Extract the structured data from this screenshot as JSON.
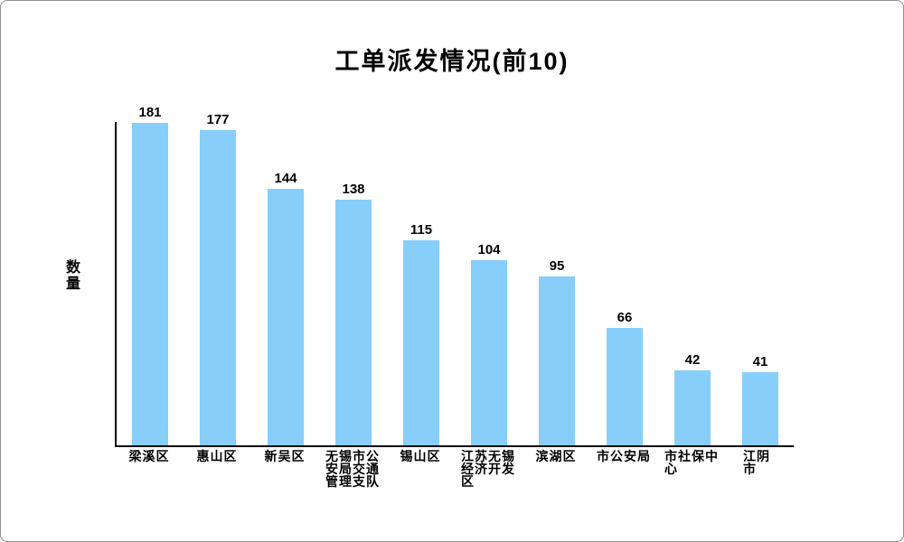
{
  "chart_data": {
    "type": "bar",
    "title": "工单派发情况(前10)",
    "xlabel": "",
    "ylabel": "数量",
    "ylabel_display": "数\n量",
    "categories": [
      "梁溪区",
      "惠山区",
      "新吴区",
      "无锡市公安局交通管理支队",
      "锡山区",
      "江苏无锡经济开发区",
      "滨湖区",
      "市公安局",
      "市社保中心",
      "江阴市"
    ],
    "categories_display": [
      "梁溪区",
      "惠山区",
      "新吴区",
      "无锡市公\n安局交通\n管理支队",
      "锡山区",
      "江苏无锡\n经济开发\n区",
      "滨湖区",
      "市公安局",
      "市社保中\n心",
      "江阴市"
    ],
    "values": [
      181,
      177,
      144,
      138,
      115,
      104,
      95,
      66,
      42,
      41
    ],
    "ylim": [
      0,
      182
    ],
    "grid": false,
    "legend": false,
    "bar_color": "#87CEFA",
    "axis_color": "#000000",
    "background_color": "#ffffff"
  }
}
